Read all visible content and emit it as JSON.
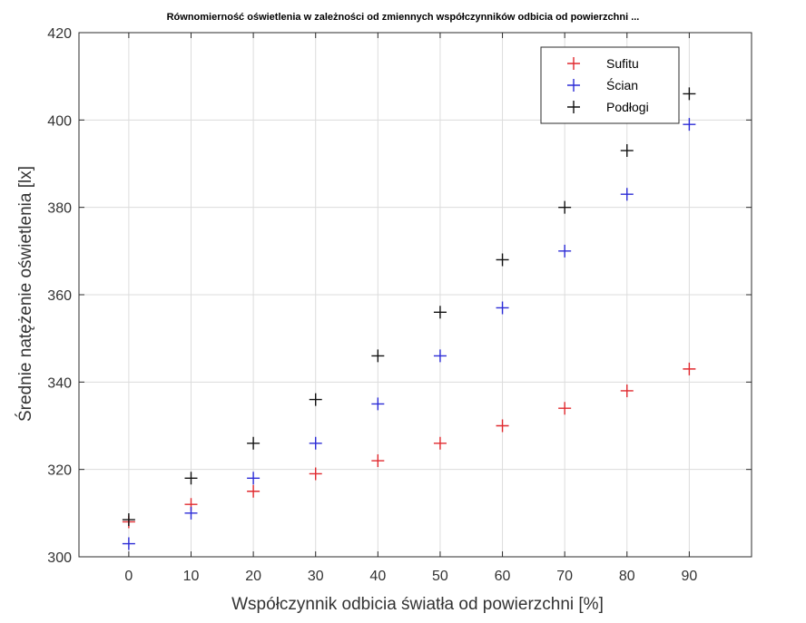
{
  "chart_data": {
    "type": "scatter",
    "title": "Równomierność oświetlenia w zależności od zmiennych współczynników odbicia od powierzchni ...",
    "xlabel": "Współczynnik odbicia światła od powierzchni [%]",
    "ylabel": "Średnie natężenie oświetlenia [lx]",
    "xlim": [
      -8,
      100
    ],
    "ylim": [
      300,
      420
    ],
    "xticks": [
      0,
      10,
      20,
      30,
      40,
      50,
      60,
      70,
      80,
      90
    ],
    "yticks": [
      300,
      320,
      340,
      360,
      380,
      400,
      420
    ],
    "grid": true,
    "legend_position": "top-right",
    "marker": "+",
    "x": [
      0,
      10,
      20,
      30,
      40,
      50,
      60,
      70,
      80,
      90
    ],
    "series": [
      {
        "name": "Sufitu",
        "color": "#e0292e",
        "values": [
          308,
          312,
          315,
          319,
          322,
          326,
          330,
          334,
          338,
          343
        ]
      },
      {
        "name": "Ścian",
        "color": "#2b2bd6",
        "values": [
          303,
          310,
          318,
          326,
          335,
          346,
          357,
          370,
          383,
          399
        ]
      },
      {
        "name": "Podłogi",
        "color": "#111111",
        "values": [
          308.5,
          318,
          326,
          336,
          346,
          356,
          368,
          380,
          393,
          406
        ]
      }
    ]
  }
}
